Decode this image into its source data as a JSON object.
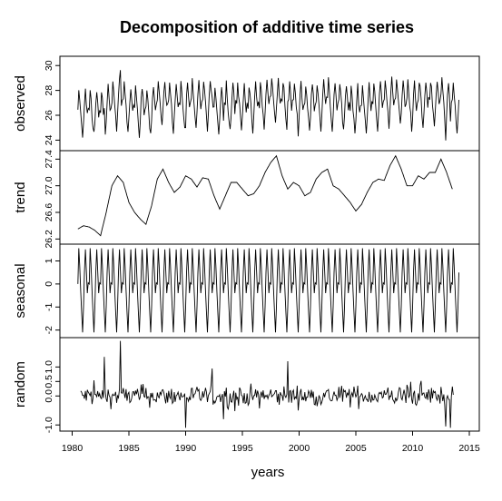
{
  "chart_data": {
    "type": "line",
    "title": "Decomposition of additive time series",
    "xlabel": "years",
    "xlim": [
      1980,
      2015
    ],
    "x_ticks": [
      1980,
      1985,
      1990,
      1995,
      2000,
      2005,
      2010,
      2015
    ],
    "x_tick_labels": [
      "1980",
      "1985",
      "1990",
      "1995",
      "2000",
      "2005",
      "2010",
      "2015"
    ],
    "frequency": 12,
    "start": 1980.5,
    "end": 2014.1,
    "panels": [
      {
        "name": "observed",
        "ylabel": "observed",
        "ylim": [
          23.3,
          30.6
        ],
        "y_ticks": [
          24,
          26,
          28,
          30
        ],
        "y_tick_labels": [
          "24",
          "26",
          "28",
          "30"
        ],
        "y_range_seen": [
          23.5,
          30.4
        ]
      },
      {
        "name": "trend",
        "ylabel": "trend",
        "ylim": [
          26.15,
          27.5
        ],
        "y_ticks": [
          26.2,
          26.6,
          27.0,
          27.4
        ],
        "y_tick_labels": [
          "26.2",
          "26.6",
          "27.0",
          "27.4"
        ],
        "years": [
          1980.5,
          1981,
          1981.5,
          1982,
          1982.5,
          1983,
          1983.5,
          1984,
          1984.5,
          1985,
          1985.5,
          1986,
          1986.5,
          1987,
          1987.5,
          1988,
          1988.5,
          1989,
          1989.5,
          1990,
          1990.5,
          1991,
          1991.5,
          1992,
          1992.5,
          1993,
          1993.5,
          1994,
          1994.5,
          1995,
          1995.5,
          1996,
          1996.5,
          1997,
          1997.5,
          1998,
          1998.5,
          1999,
          1999.5,
          2000,
          2000.5,
          2001,
          2001.5,
          2002,
          2002.5,
          2003,
          2003.5,
          2004,
          2004.5,
          2005,
          2005.5,
          2006,
          2006.5,
          2007,
          2007.5,
          2008,
          2008.5,
          2009,
          2009.5,
          2010,
          2010.5,
          2011,
          2011.5,
          2012,
          2012.5,
          2013,
          2013.5
        ],
        "values": [
          26.35,
          26.4,
          26.38,
          26.33,
          26.25,
          26.6,
          27.0,
          27.15,
          27.05,
          26.75,
          26.6,
          26.5,
          26.42,
          26.7,
          27.1,
          27.25,
          27.05,
          26.9,
          26.98,
          27.15,
          27.1,
          26.98,
          27.12,
          27.1,
          26.85,
          26.65,
          26.85,
          27.05,
          27.05,
          26.95,
          26.85,
          26.88,
          27.0,
          27.2,
          27.35,
          27.45,
          27.15,
          26.95,
          27.05,
          27.0,
          26.85,
          26.9,
          27.1,
          27.2,
          27.25,
          27.0,
          26.95,
          26.85,
          26.75,
          26.62,
          26.72,
          26.9,
          27.05,
          27.1,
          27.08,
          27.3,
          27.45,
          27.25,
          27.0,
          27.0,
          27.15,
          27.1,
          27.2,
          27.2,
          27.4,
          27.2,
          26.95
        ]
      },
      {
        "name": "seasonal",
        "ylabel": "seasonal",
        "ylim": [
          -2.25,
          1.65
        ],
        "y_ticks": [
          -2,
          -1,
          0,
          1
        ],
        "y_tick_labels": [
          "-2",
          "-1",
          "0",
          "1"
        ],
        "monthly_pattern": [
          0.0,
          1.55,
          0.8,
          -0.3,
          -1.2,
          -2.1,
          -1.0,
          0.5,
          1.5,
          0.6,
          -0.4,
          0.05
        ]
      },
      {
        "name": "random",
        "ylabel": "random",
        "ylim": [
          -1.15,
          1.95
        ],
        "y_ticks": [
          -1.0,
          0.0,
          0.5,
          1.0
        ],
        "y_tick_labels": [
          "-1.0",
          "0.0",
          "0.5",
          "1.0"
        ],
        "y_range_seen": [
          -1.1,
          1.9
        ]
      }
    ]
  }
}
